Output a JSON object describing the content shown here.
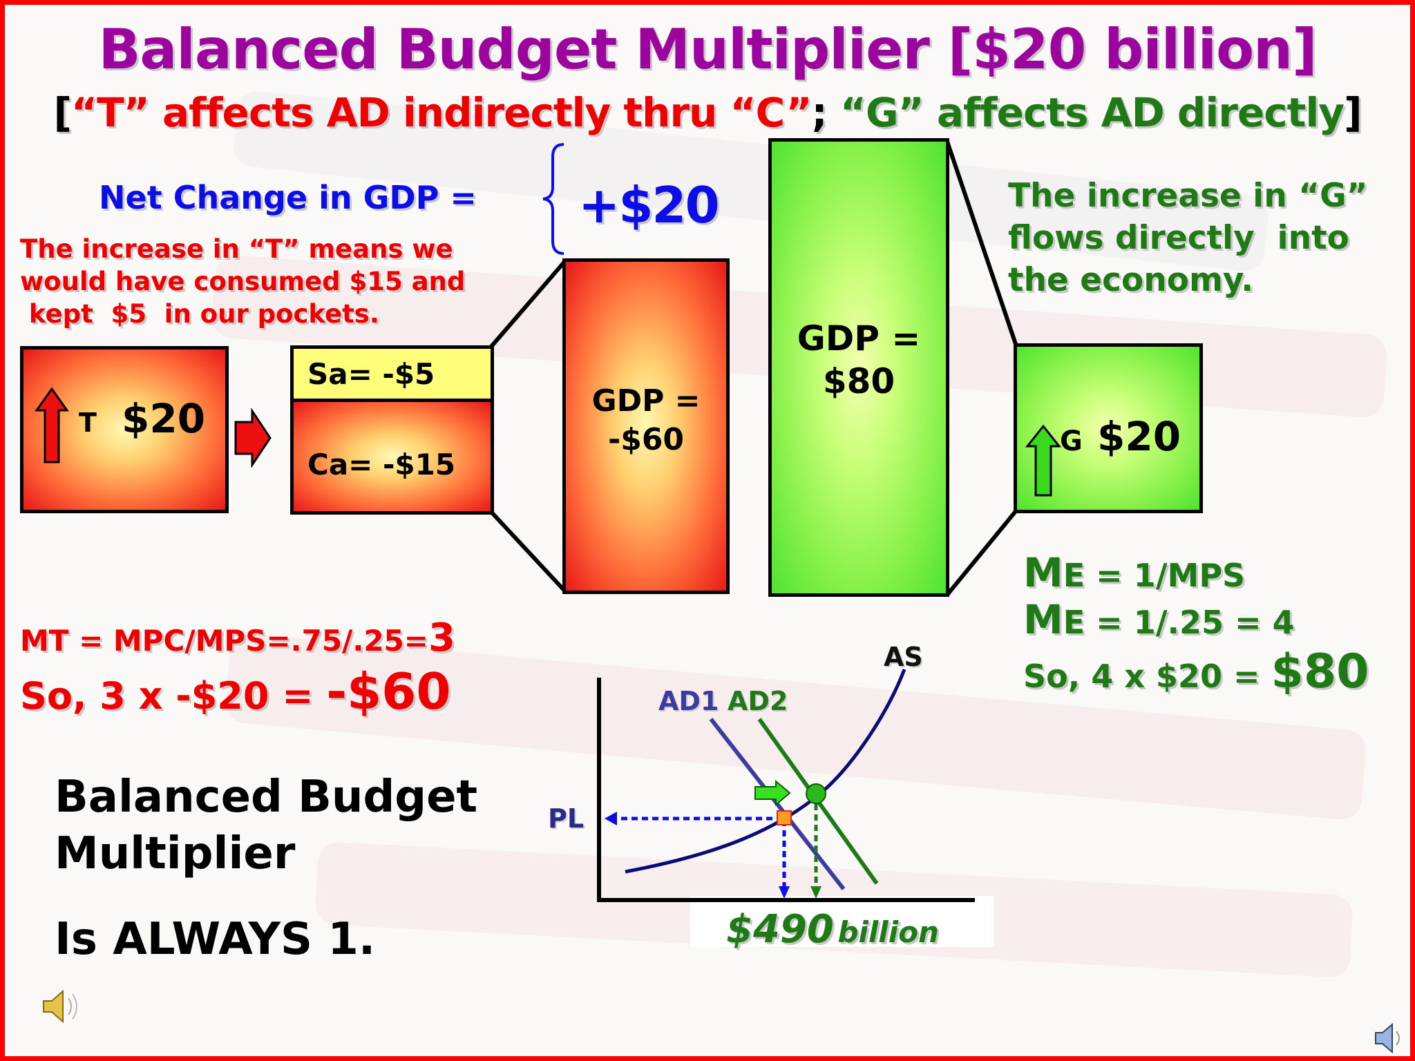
{
  "title": "Balanced Budget Multiplier [$20 billion]",
  "subtitle": {
    "bracket_open": "[",
    "red_part": "“T” affects AD indirectly thru “C”",
    "separator": ";",
    "green_part": "“G” affects AD directly",
    "bracket_close": "]"
  },
  "net_change": {
    "label": "Net Change in GDP =",
    "value": "+$20"
  },
  "tax_note": [
    "The increase in “T” means we",
    "would have consumed $15 and",
    " kept  $5  in our pockets."
  ],
  "gov_note": [
    "The increase in “G”",
    "flows directly  into",
    "the economy."
  ],
  "tax_box": {
    "letter": "T",
    "amount": "$20"
  },
  "saving_box": {
    "label": "Sa= -$5"
  },
  "consumption_box": {
    "label": "Ca= -$15"
  },
  "gdp_negative_box": {
    "line1": "GDP =",
    "line2": "-$60"
  },
  "gdp_positive_box": {
    "line1": "GDP =",
    "line2": "$80"
  },
  "gov_box": {
    "letter": "G",
    "amount": "$20"
  },
  "tax_multiplier": {
    "line1_prefix": "MT = MPC/MPS=.75/.25=",
    "line1_big": "3",
    "line2_prefix": "So, 3 x -$20 = ",
    "line2_big": "-$60"
  },
  "expenditure_multiplier": {
    "line1": "= 1/MPS",
    "line2": "= 1/.25 = 4",
    "line3_prefix": "So, 4 x $20 = ",
    "line3_big": "$80",
    "symbol_main": "M",
    "symbol_sub": "E"
  },
  "conclusion": {
    "line1": "Balanced Budget",
    "line2": "Multiplier",
    "line3": "Is ALWAYS 1."
  },
  "graph": {
    "as_label": "AS",
    "ad1_label": "AD1",
    "ad2_label": "AD2",
    "pl_label": "PL",
    "gdp_value": "$490",
    "gdp_unit": "billion"
  },
  "colors": {
    "title": "#9b059e",
    "red": "#ee0000",
    "green": "#1f7a16",
    "blue": "#0d0de8",
    "navy": "#1e1e8c",
    "border": "#ff0000"
  }
}
